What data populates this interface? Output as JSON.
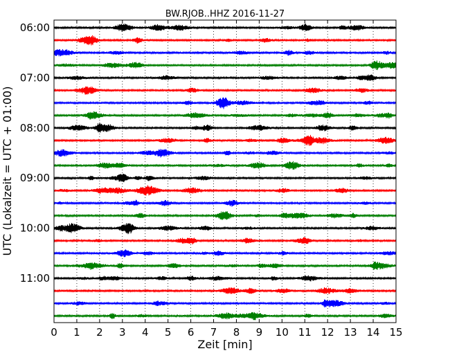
{
  "chart_data": {
    "type": "line",
    "title": "BW.RJOB..HHZ 2016-11-27",
    "xlabel": "Zeit  [min]",
    "ylabel": "UTC (Lokalzeit = UTC + 01:00)",
    "xlim": [
      0,
      15
    ],
    "x_ticks": [
      "0",
      "1",
      "2",
      "3",
      "4",
      "5",
      "6",
      "7",
      "8",
      "9",
      "10",
      "11",
      "12",
      "13",
      "14",
      "15"
    ],
    "y_tick_labels": [
      "06:00",
      "07:00",
      "08:00",
      "09:00",
      "10:00",
      "11:00"
    ],
    "grid": "vertical-dotted",
    "trace_count": 24,
    "trace_interval_min": 15,
    "trace_colors": [
      "#000000",
      "#ff0000",
      "#0000ff",
      "#007f00"
    ]
  }
}
